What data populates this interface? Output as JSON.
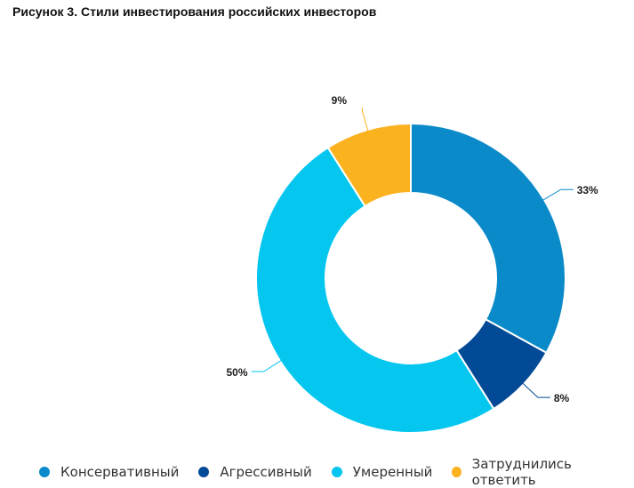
{
  "chart_data": {
    "type": "pie",
    "title": "Рисунок 3. Стили инвестирования российских инвесторов",
    "donut": true,
    "slices": [
      {
        "label": "Консервативный",
        "value": 33,
        "value_label": "33%",
        "color": "#0b8ac9"
      },
      {
        "label": "Агрессивный",
        "value": 8,
        "value_label": "8%",
        "color": "#034a96"
      },
      {
        "label": "Умеренный",
        "value": 50,
        "value_label": "50%",
        "color": "#05c6ef"
      },
      {
        "label": "Затруднились ответить",
        "value": 9,
        "value_label": "9%",
        "color": "#fbb21f"
      }
    ],
    "legend_position": "bottom"
  }
}
